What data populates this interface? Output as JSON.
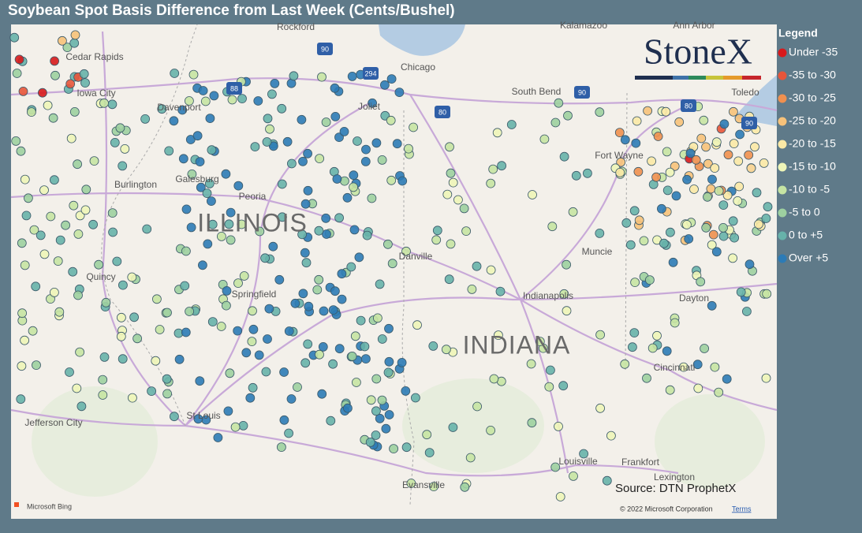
{
  "title": "Soybean Spot Basis Difference from Last Week (Cents/Bushel)",
  "legend": {
    "title": "Legend",
    "items": [
      {
        "label": "Under -35",
        "color": "#d7191c"
      },
      {
        "label": "-35 to -30",
        "color": "#e8553a"
      },
      {
        "label": "-30 to -25",
        "color": "#f0904f"
      },
      {
        "label": "-25 to -20",
        "color": "#f7c27a"
      },
      {
        "label": "-20 to -15",
        "color": "#fbe9a6"
      },
      {
        "label": "-15 to -10",
        "color": "#eef5b8"
      },
      {
        "label": "-10 to -5",
        "color": "#c6e4a3"
      },
      {
        "label": "-5 to 0",
        "color": "#9dd0a0"
      },
      {
        "label": "0 to +5",
        "color": "#67b2aa"
      },
      {
        "label": "Over +5",
        "color": "#2c7bb6"
      }
    ]
  },
  "logo": "StoneX",
  "map": {
    "places": [
      "Rockford",
      "Chicago",
      "Cedar Rapids",
      "Iowa City",
      "Davenport",
      "Joliet",
      "South Bend",
      "Toledo",
      "Galesburg",
      "Peoria",
      "Burlington",
      "Quincy",
      "Springfield",
      "Danville",
      "Muncie",
      "Indianapolis",
      "Dayton",
      "Cincinnati",
      "Fort Wayne",
      "Jefferson City",
      "St Louis",
      "Louisville",
      "Frankfort",
      "Lexington",
      "Evansville",
      "Kalamazoo",
      "Ann Arbor"
    ],
    "states": [
      "ILLINOIS",
      "INDIANA"
    ],
    "shields": [
      "90",
      "294",
      "88",
      "80",
      "90",
      "80",
      "90"
    ]
  },
  "source": "Source: DTN ProphetX",
  "attribution": {
    "bing": "Microsoft Bing",
    "copyright": "© 2022 Microsoft Corporation",
    "terms": "Terms"
  }
}
